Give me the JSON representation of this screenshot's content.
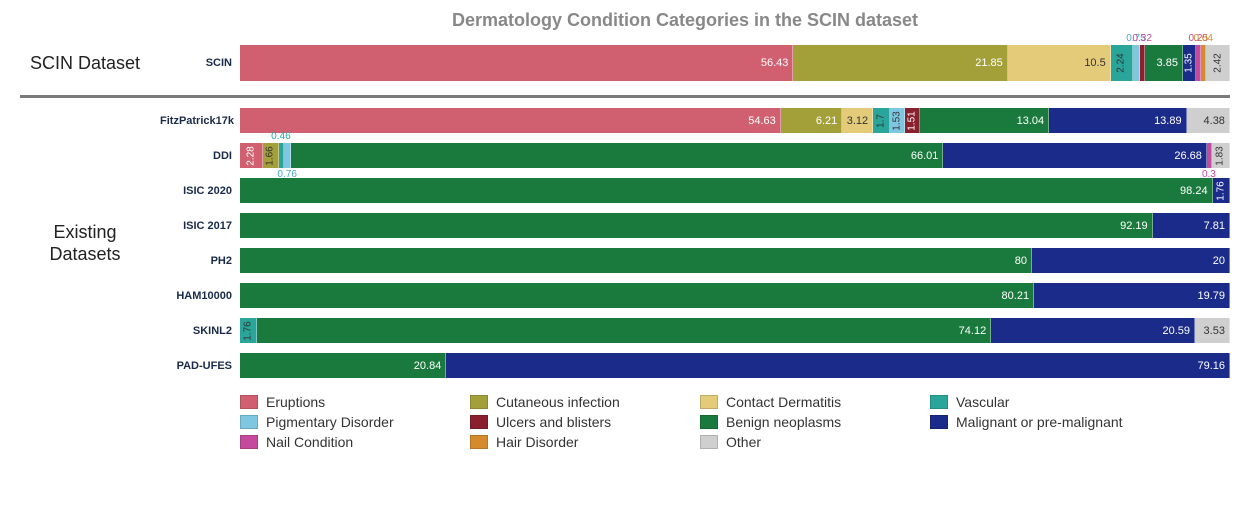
{
  "title": "Dermatology Condition Categories in the SCIN dataset",
  "colors": {
    "Eruptions": "#d06070",
    "Cutaneous infection": "#a3a03a",
    "Contact Dermatitis": "#e3cb7a",
    "Vascular": "#2aa59a",
    "Pigmentary Disorder": "#7fc7e0",
    "Ulcers and blisters": "#8a1f2e",
    "Benign neoplasms": "#1a7a3e",
    "Malignant or pre-malignant": "#1a2b8a",
    "Nail Condition": "#c44a9e",
    "Hair Disorder": "#d68a2e",
    "Other": "#cfcfcf"
  },
  "sections": [
    {
      "label": "SCIN Dataset",
      "rows": [
        {
          "name": "SCIN",
          "tall": true,
          "segments": [
            {
              "cat": "Eruptions",
              "val": 56.43,
              "pos": "in"
            },
            {
              "cat": "Cutaneous infection",
              "val": 21.85,
              "pos": "in"
            },
            {
              "cat": "Contact Dermatitis",
              "val": 10.5,
              "pos": "in",
              "dark": true
            },
            {
              "cat": "Vascular",
              "val": 2.24,
              "pos": "vert"
            },
            {
              "cat": "Pigmentary Disorder",
              "val": 0.75,
              "pos": "above",
              "aboveColor": "#4aa8c7"
            },
            {
              "cat": "Ulcers and blisters",
              "val": 0.32,
              "pos": "above",
              "aboveColor": "#c44a9e"
            },
            {
              "cat": "Benign neoplasms",
              "val": 3.85,
              "pos": "in"
            },
            {
              "cat": "Malignant or pre-malignant",
              "val": 1.35,
              "pos": "vert",
              "vertColor": "#fff"
            },
            {
              "cat": "Nail Condition",
              "val": 0.25,
              "pos": "above",
              "aboveColor": "#c44a9e"
            },
            {
              "cat": "Hair Disorder",
              "val": 0.04,
              "pos": "above",
              "aboveColor": "#d68a2e"
            },
            {
              "cat": "Other",
              "val": 2.42,
              "pos": "vert"
            }
          ]
        }
      ]
    },
    {
      "label": "Existing Datasets",
      "rows": [
        {
          "name": "FitzPatrick17k",
          "segments": [
            {
              "cat": "Eruptions",
              "val": 54.63,
              "pos": "in"
            },
            {
              "cat": "Cutaneous infection",
              "val": 6.21,
              "pos": "in"
            },
            {
              "cat": "Contact Dermatitis",
              "val": 3.12,
              "pos": "in",
              "dark": true
            },
            {
              "cat": "Vascular",
              "val": 1.7,
              "pos": "vert"
            },
            {
              "cat": "Pigmentary Disorder",
              "val": 1.53,
              "pos": "vert"
            },
            {
              "cat": "Ulcers and blisters",
              "val": 1.51,
              "pos": "vert",
              "vertColor": "#fff"
            },
            {
              "cat": "Benign neoplasms",
              "val": 13.04,
              "pos": "in"
            },
            {
              "cat": "Malignant or pre-malignant",
              "val": 13.89,
              "pos": "in"
            },
            {
              "cat": "Other",
              "val": 4.38,
              "pos": "in",
              "dark": true
            }
          ]
        },
        {
          "name": "DDI",
          "segments": [
            {
              "cat": "Eruptions",
              "val": 2.28,
              "pos": "vert",
              "vertColor": "#fff"
            },
            {
              "cat": "Cutaneous infection",
              "val": 1.66,
              "pos": "vert"
            },
            {
              "cat": "Vascular",
              "val": 0.46,
              "pos": "above",
              "aboveColor": "#2aa59a"
            },
            {
              "cat": "Pigmentary Disorder",
              "val": 0.76,
              "pos": "above",
              "aboveColor": "#4aa8c7",
              "aboveBelow": true
            },
            {
              "cat": "Benign neoplasms",
              "val": 66.01,
              "pos": "in"
            },
            {
              "cat": "Malignant or pre-malignant",
              "val": 26.68,
              "pos": "in"
            },
            {
              "cat": "Nail Condition",
              "val": 0.3,
              "pos": "above",
              "aboveColor": "#c44a9e",
              "aboveBelow": true
            },
            {
              "cat": "Other",
              "val": 1.83,
              "pos": "vert"
            }
          ]
        },
        {
          "name": "ISIC 2020",
          "segments": [
            {
              "cat": "Benign neoplasms",
              "val": 98.24,
              "pos": "in"
            },
            {
              "cat": "Malignant or pre-malignant",
              "val": 1.76,
              "pos": "vert",
              "vertColor": "#fff"
            }
          ]
        },
        {
          "name": "ISIC 2017",
          "segments": [
            {
              "cat": "Benign neoplasms",
              "val": 92.19,
              "pos": "in"
            },
            {
              "cat": "Malignant or pre-malignant",
              "val": 7.81,
              "pos": "in"
            }
          ]
        },
        {
          "name": "PH2",
          "segments": [
            {
              "cat": "Benign neoplasms",
              "val": 80.0,
              "pos": "in"
            },
            {
              "cat": "Malignant or pre-malignant",
              "val": 20.0,
              "pos": "in"
            }
          ]
        },
        {
          "name": "HAM10000",
          "segments": [
            {
              "cat": "Benign neoplasms",
              "val": 80.21,
              "pos": "in"
            },
            {
              "cat": "Malignant or pre-malignant",
              "val": 19.79,
              "pos": "in"
            }
          ]
        },
        {
          "name": "SKINL2",
          "segments": [
            {
              "cat": "Vascular",
              "val": 1.76,
              "pos": "vert"
            },
            {
              "cat": "Benign neoplasms",
              "val": 74.12,
              "pos": "in"
            },
            {
              "cat": "Malignant or pre-malignant",
              "val": 20.59,
              "pos": "in"
            },
            {
              "cat": "Other",
              "val": 3.53,
              "pos": "in",
              "dark": true
            }
          ]
        },
        {
          "name": "PAD-UFES",
          "segments": [
            {
              "cat": "Benign neoplasms",
              "val": 20.84,
              "pos": "in"
            },
            {
              "cat": "Malignant or pre-malignant",
              "val": 79.16,
              "pos": "in"
            }
          ]
        }
      ]
    }
  ],
  "legend_order": [
    "Eruptions",
    "Cutaneous infection",
    "Contact Dermatitis",
    "Vascular",
    "Pigmentary Disorder",
    "Ulcers and blisters",
    "Benign neoplasms",
    "Malignant or pre-malignant",
    "Nail Condition",
    "Hair Disorder",
    "Other"
  ]
}
